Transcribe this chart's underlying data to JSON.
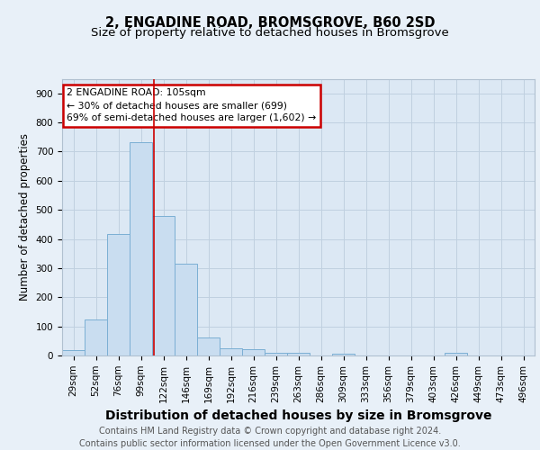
{
  "title": "2, ENGADINE ROAD, BROMSGROVE, B60 2SD",
  "subtitle": "Size of property relative to detached houses in Bromsgrove",
  "xlabel": "Distribution of detached houses by size in Bromsgrove",
  "ylabel": "Number of detached properties",
  "bar_labels": [
    "29sqm",
    "52sqm",
    "76sqm",
    "99sqm",
    "122sqm",
    "146sqm",
    "169sqm",
    "192sqm",
    "216sqm",
    "239sqm",
    "263sqm",
    "286sqm",
    "309sqm",
    "333sqm",
    "356sqm",
    "379sqm",
    "403sqm",
    "426sqm",
    "449sqm",
    "473sqm",
    "496sqm"
  ],
  "bar_values": [
    20,
    123,
    418,
    733,
    478,
    316,
    62,
    25,
    21,
    8,
    10,
    0,
    5,
    0,
    0,
    0,
    0,
    8,
    0,
    0,
    0
  ],
  "bar_color": "#c9ddf0",
  "bar_edge_color": "#7bafd4",
  "bar_linewidth": 0.7,
  "vline_x": 3.58,
  "vline_color": "#cc0000",
  "vline_linewidth": 1.2,
  "annotation_text": "2 ENGADINE ROAD: 105sqm\n← 30% of detached houses are smaller (699)\n69% of semi-detached houses are larger (1,602) →",
  "annotation_box_facecolor": "#ffffff",
  "annotation_box_edgecolor": "#cc0000",
  "ylim": [
    0,
    950
  ],
  "yticks": [
    0,
    100,
    200,
    300,
    400,
    500,
    600,
    700,
    800,
    900
  ],
  "grid_color": "#c0d0e0",
  "fig_bg_color": "#e8f0f8",
  "plot_bg_color": "#dce8f4",
  "footer_text": "Contains HM Land Registry data © Crown copyright and database right 2024.\nContains public sector information licensed under the Open Government Licence v3.0.",
  "title_fontsize": 10.5,
  "subtitle_fontsize": 9.5,
  "xlabel_fontsize": 10,
  "ylabel_fontsize": 8.5,
  "tick_fontsize": 7.5,
  "footer_fontsize": 7,
  "annotation_fontsize": 7.8
}
